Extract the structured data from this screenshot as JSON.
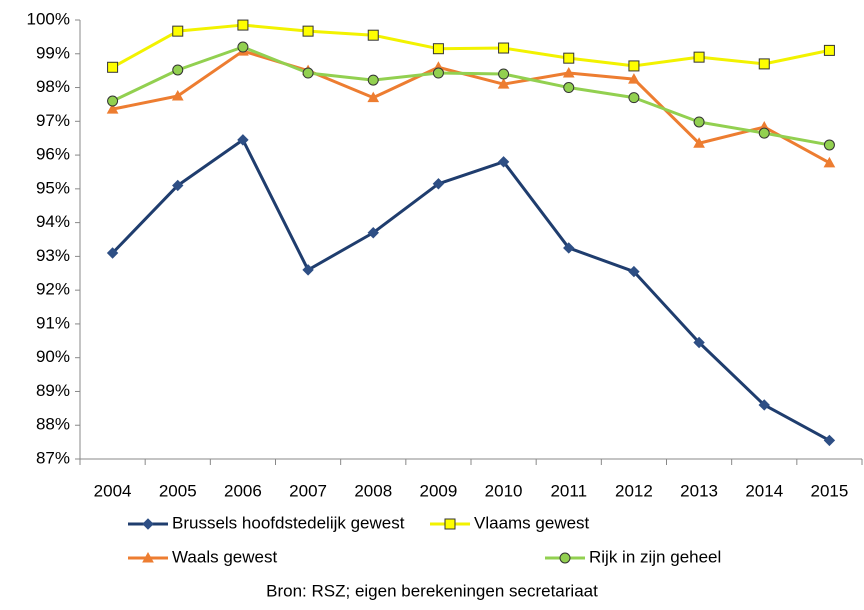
{
  "chart_data": {
    "type": "line",
    "categories": [
      "2004",
      "2005",
      "2006",
      "2007",
      "2008",
      "2009",
      "2010",
      "2011",
      "2012",
      "2013",
      "2014",
      "2015"
    ],
    "series": [
      {
        "name": "Brussels hoofdstedelijk gewest",
        "color": "#1f3d6e",
        "marker": "diamond",
        "marker_fill": "#2e4f85",
        "values": [
          93.1,
          95.1,
          96.45,
          92.6,
          93.7,
          95.15,
          95.8,
          93.25,
          92.55,
          90.45,
          88.6,
          87.55
        ]
      },
      {
        "name": "Vlaams gewest",
        "color": "#f2f200",
        "marker": "square",
        "marker_fill": "#ffff00",
        "values": [
          98.6,
          99.67,
          99.85,
          99.67,
          99.55,
          99.15,
          99.17,
          98.87,
          98.64,
          98.9,
          98.7,
          99.1
        ]
      },
      {
        "name": "Waals gewest",
        "color": "#ed7d31",
        "marker": "triangle",
        "marker_fill": "#ed7d31",
        "values": [
          97.36,
          97.75,
          99.08,
          98.5,
          97.7,
          98.6,
          98.1,
          98.43,
          98.25,
          96.35,
          96.83,
          95.77
        ]
      },
      {
        "name": "Rijk in zijn geheel",
        "color": "#92d050",
        "marker": "circle",
        "marker_fill": "#92d050",
        "values": [
          97.6,
          98.52,
          99.2,
          98.43,
          98.22,
          98.43,
          98.4,
          98.0,
          97.7,
          96.98,
          96.65,
          96.3
        ]
      }
    ],
    "ylim": [
      87,
      100
    ],
    "yticks": [
      {
        "value": 87,
        "label": "87%"
      },
      {
        "value": 88,
        "label": "88%"
      },
      {
        "value": 89,
        "label": "89%"
      },
      {
        "value": 90,
        "label": "90%"
      },
      {
        "value": 91,
        "label": "91%"
      },
      {
        "value": 92,
        "label": "92%"
      },
      {
        "value": 93,
        "label": "93%"
      },
      {
        "value": 94,
        "label": "94%"
      },
      {
        "value": 95,
        "label": "95%"
      },
      {
        "value": 96,
        "label": "96%"
      },
      {
        "value": 97,
        "label": "97%"
      },
      {
        "value": 98,
        "label": "98%"
      },
      {
        "value": 99,
        "label": "99%"
      },
      {
        "value": 100,
        "label": "100%"
      }
    ],
    "grid": false,
    "legend": "bottom",
    "source": "Bron: RSZ; eigen berekeningen secretariaat"
  }
}
